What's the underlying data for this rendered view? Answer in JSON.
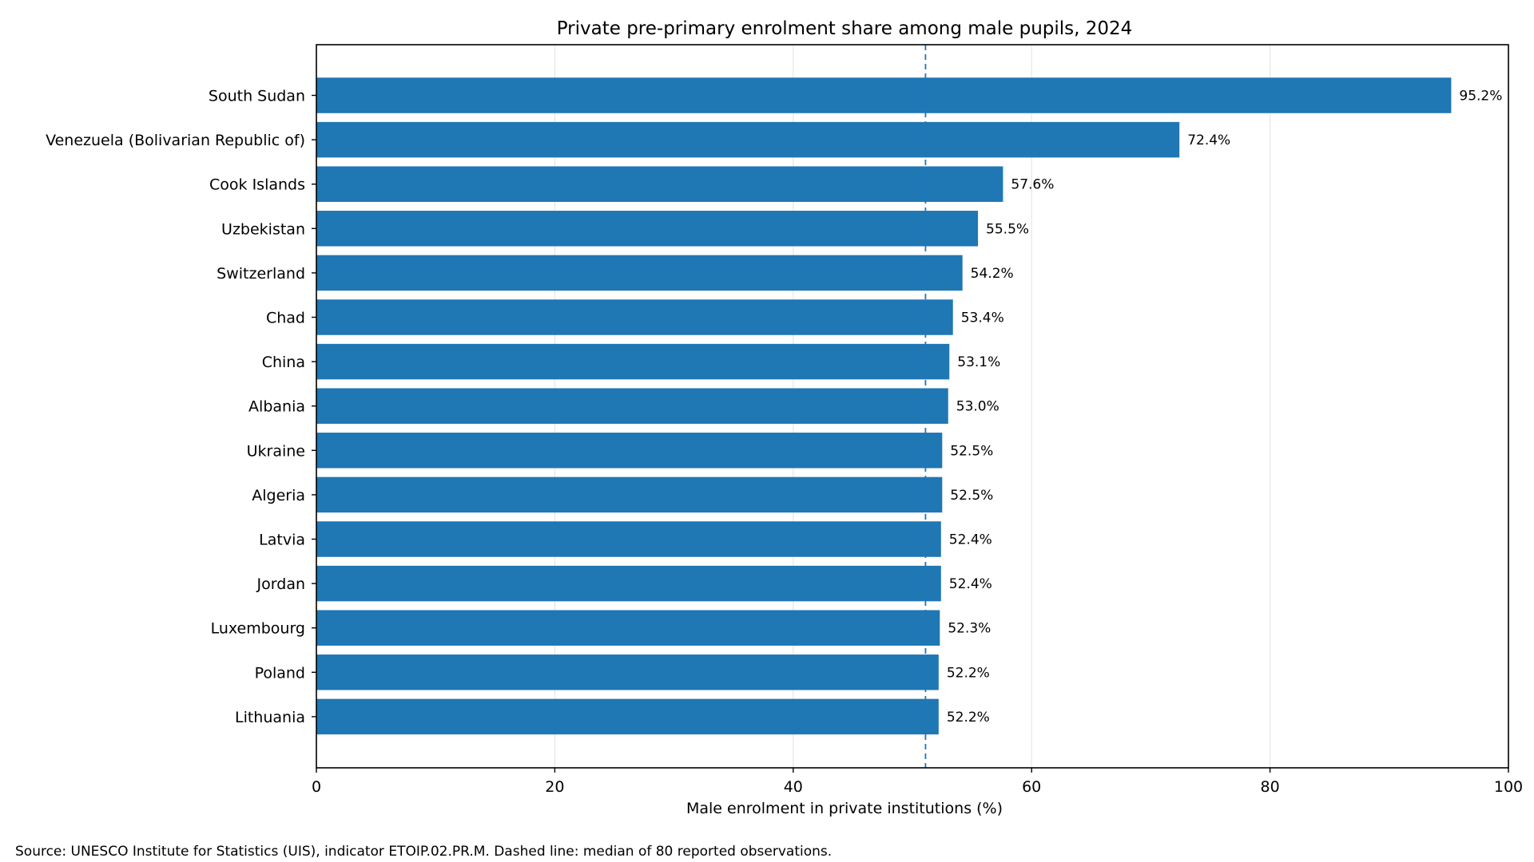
{
  "chart_data": {
    "type": "bar",
    "orientation": "horizontal",
    "title": "Private pre-primary enrolment share among male pupils, 2024",
    "xlabel": "Male enrolment in private institutions (%)",
    "ylabel": "",
    "xlim": [
      0,
      100
    ],
    "xticks": [
      0,
      20,
      40,
      60,
      80,
      100
    ],
    "grid": true,
    "categories": [
      "South Sudan",
      "Venezuela (Bolivarian Republic of)",
      "Cook Islands",
      "Uzbekistan",
      "Switzerland",
      "Chad",
      "China",
      "Albania",
      "Ukraine",
      "Algeria",
      "Latvia",
      "Jordan",
      "Luxembourg",
      "Poland",
      "Lithuania"
    ],
    "values": [
      95.2,
      72.4,
      57.6,
      55.5,
      54.2,
      53.4,
      53.1,
      53.0,
      52.5,
      52.5,
      52.4,
      52.4,
      52.3,
      52.2,
      52.2
    ],
    "data_labels": [
      "95.2%",
      "72.4%",
      "57.6%",
      "55.5%",
      "54.2%",
      "53.4%",
      "53.1%",
      "53.0%",
      "52.5%",
      "52.5%",
      "52.4%",
      "52.4%",
      "52.3%",
      "52.2%",
      "52.2%"
    ],
    "median_line": 51.1,
    "bar_color": "#1f77b4",
    "median_line_color": "#1f77b4"
  },
  "footer": {
    "source": "Source: UNESCO Institute for Statistics (UIS), indicator ETOIP.02.PR.M. Dashed line: median of 80 reported observations."
  }
}
